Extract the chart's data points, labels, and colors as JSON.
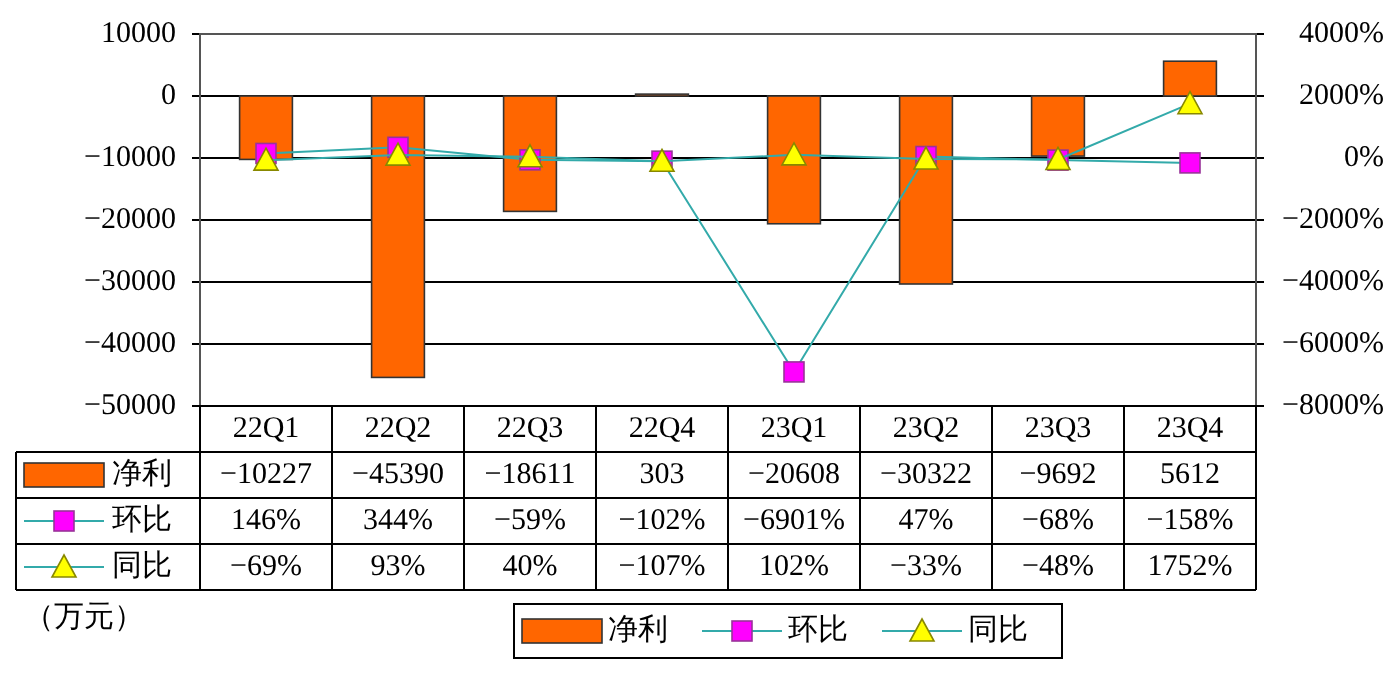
{
  "chart_data": {
    "type": "bar",
    "categories": [
      "22Q1",
      "22Q2",
      "22Q3",
      "22Q4",
      "23Q1",
      "23Q2",
      "23Q3",
      "23Q4"
    ],
    "series": [
      {
        "name": "净利",
        "color": "#ff6600",
        "values": [
          -10227,
          -45390,
          -18611,
          303,
          -20608,
          -30322,
          -9692,
          5612
        ],
        "value_labels": [
          "−10227",
          "−45390",
          "−18611",
          "303",
          "−20608",
          "−30322",
          "−9692",
          "5612"
        ]
      },
      {
        "name": "环比",
        "type": "line",
        "axis": "y2",
        "marker": "square",
        "color": "#ff00ff",
        "values": [
          146,
          344,
          -59,
          -102,
          -6901,
          47,
          -68,
          -158
        ],
        "value_labels": [
          "146%",
          "344%",
          "−59%",
          "−102%",
          "−6901%",
          "47%",
          "−68%",
          "−158%"
        ]
      },
      {
        "name": "同比",
        "type": "line",
        "axis": "y2",
        "marker": "triangle",
        "color": "#ffff00",
        "values": [
          -69,
          93,
          40,
          -107,
          102,
          -33,
          -48,
          1752
        ],
        "value_labels": [
          "−69%",
          "93%",
          "40%",
          "−107%",
          "102%",
          "−33%",
          "−48%",
          "1752%"
        ]
      }
    ],
    "ylim": [
      -50000,
      10000
    ],
    "yticks": [
      -50000,
      -40000,
      -30000,
      -20000,
      -10000,
      0,
      10000
    ],
    "y2lim": [
      -8000,
      4000
    ],
    "y2ticks": [
      {
        "value": -8000,
        "label": "−8000%"
      },
      {
        "value": -6000,
        "label": "−6000%"
      },
      {
        "value": -4000,
        "label": "−4000%"
      },
      {
        "value": -2000,
        "label": "−2000%"
      },
      {
        "value": 0,
        "label": "0%"
      },
      {
        "value": 2000,
        "label": "2000%"
      },
      {
        "value": 4000,
        "label": "4000%"
      }
    ],
    "grid": "y",
    "legend": "bottom",
    "annotations": [
      "（万元）"
    ]
  }
}
